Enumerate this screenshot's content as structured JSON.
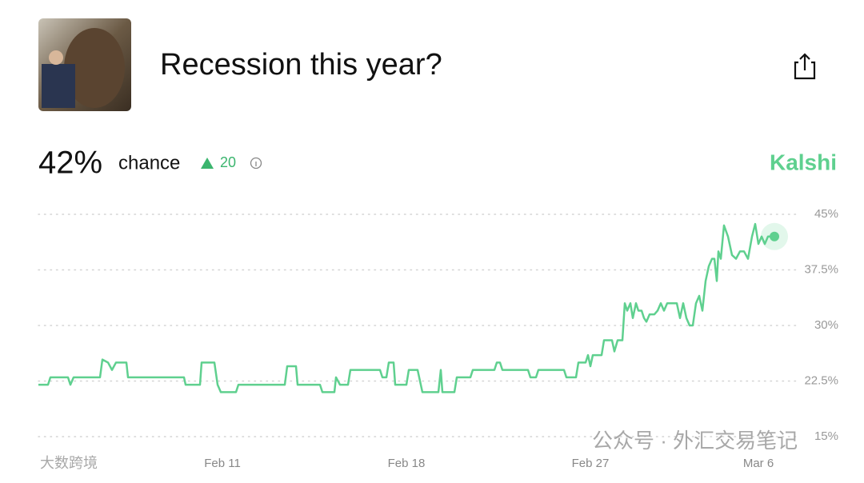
{
  "header": {
    "title": "Recession this year?",
    "chance_value": "42%",
    "chance_label": "chance",
    "change": "20",
    "brand": "Kalshi"
  },
  "watermarks": [
    "公众号 · 外汇交易笔记",
    "大数跨境"
  ],
  "chart_data": {
    "type": "line",
    "color": "#5fd08f",
    "grid": true,
    "x": [
      0,
      1.2,
      1.5,
      3.7,
      4,
      4.4,
      7.7,
      8,
      8.7,
      9.2,
      9.7,
      11,
      11.2,
      18.2,
      18.4,
      20.2,
      20.4,
      22,
      22.4,
      22.8,
      24.7,
      25,
      30.8,
      31.1,
      32.2,
      32.4,
      35.2,
      35.5,
      37,
      37.2,
      37.7,
      38.7,
      39,
      42.7,
      43,
      43.5,
      43.8,
      44.4,
      44.6,
      46,
      46.3,
      47.4,
      47.8,
      48,
      50,
      50.3,
      50.5,
      52,
      52.3,
      54,
      54.3,
      57,
      57.3,
      57.7,
      58,
      61.2,
      61.5,
      62.2,
      62.5,
      65.7,
      66,
      67.2,
      67.5,
      68.4,
      68.7,
      69,
      69.3,
      70.4,
      70.7,
      71.7,
      72,
      72.4,
      73,
      73.3,
      73.6,
      74,
      74.3,
      74.7,
      75,
      75.4,
      75.7,
      76,
      76.4,
      77,
      77.4,
      77.8,
      78.2,
      78.6,
      79.8,
      80.2,
      80.6,
      81,
      81.4,
      81.8,
      82.2,
      82.6,
      83,
      83.4,
      83.8,
      84.2,
      84.5,
      84.8,
      85,
      85.3,
      85.7,
      86.2,
      86.7,
      87.2,
      87.7,
      88.2,
      88.7,
      89.2,
      89.6,
      90,
      90.4,
      90.8,
      91.2,
      92
    ],
    "values": [
      22,
      22,
      23,
      23,
      22,
      23,
      23,
      25.4,
      25,
      24,
      25,
      25,
      23,
      23,
      22,
      22,
      25,
      25,
      22,
      21,
      21,
      22,
      22,
      24.5,
      24.5,
      22,
      22,
      21,
      21,
      23,
      22,
      22,
      24,
      24,
      23,
      23,
      25,
      25,
      22,
      22,
      24,
      24,
      22,
      21,
      21,
      24,
      21,
      21,
      23,
      23,
      24,
      24,
      25,
      25,
      24,
      24,
      23,
      23,
      24,
      24,
      23,
      23,
      25,
      25,
      26,
      24.5,
      26,
      26,
      28,
      28,
      26.5,
      28,
      28,
      33,
      32,
      33,
      31,
      33,
      32,
      32,
      31,
      30.5,
      31.5,
      31.5,
      32,
      33,
      32,
      33,
      33,
      31,
      33,
      31,
      30,
      30,
      33,
      34,
      32,
      36,
      38,
      39,
      39,
      36,
      40,
      39,
      43.5,
      42,
      39.5,
      39,
      40,
      40,
      39,
      42,
      43.7,
      41,
      42,
      41,
      42,
      42
    ],
    "xlim": [
      0,
      92
    ],
    "xticks": [
      {
        "value": 23,
        "label": "Feb 11"
      },
      {
        "value": 46,
        "label": "Feb 18"
      },
      {
        "value": 69,
        "label": "Feb 27"
      },
      {
        "value": 90,
        "label": "Mar 6"
      }
    ],
    "ylim": [
      15,
      45
    ],
    "yticks": [
      {
        "value": 15,
        "label": "15%"
      },
      {
        "value": 22.5,
        "label": "22.5%"
      },
      {
        "value": 30,
        "label": "30%"
      },
      {
        "value": 37.5,
        "label": "37.5%"
      },
      {
        "value": 45,
        "label": "45%"
      }
    ]
  }
}
